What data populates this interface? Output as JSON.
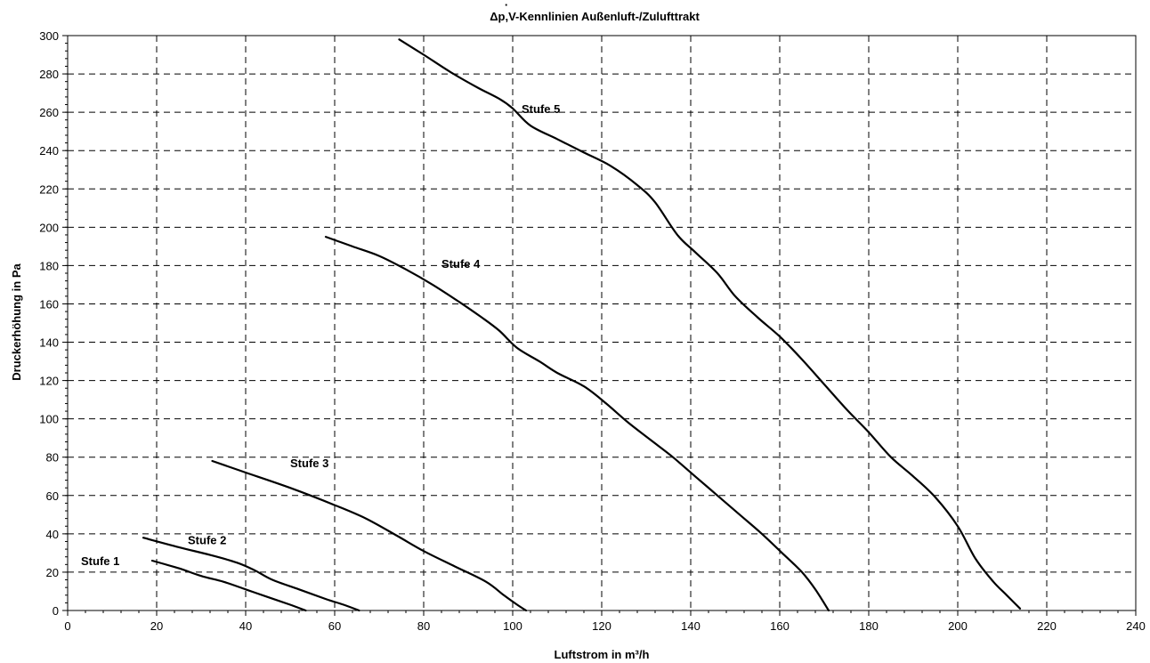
{
  "chart_data": {
    "type": "line",
    "title": "Δp,V-Kennlinien Außenluft-/Zulufttrakt",
    "title_dot": "·",
    "xlabel": "Luftstrom in m³/h",
    "ylabel": "Druckerhöhung in Pa",
    "xlim": [
      0,
      240
    ],
    "ylim": [
      0,
      300
    ],
    "x_ticks": [
      0,
      20,
      40,
      60,
      80,
      100,
      120,
      140,
      160,
      180,
      200,
      220,
      240
    ],
    "y_ticks": [
      0,
      20,
      40,
      60,
      80,
      100,
      120,
      140,
      160,
      180,
      200,
      220,
      240,
      260,
      280,
      300
    ],
    "x_minor_step": 4,
    "y_minor_step": 4,
    "grid": true,
    "legend": "none",
    "series": [
      {
        "name": "Stufe 1",
        "label_at": [
          3,
          26
        ],
        "points": [
          [
            19,
            26
          ],
          [
            25,
            22
          ],
          [
            30,
            18
          ],
          [
            35,
            15
          ],
          [
            40,
            11
          ],
          [
            45,
            7
          ],
          [
            50,
            3
          ],
          [
            53.5,
            0
          ]
        ]
      },
      {
        "name": "Stufe 2",
        "label_at": [
          27,
          37
        ],
        "points": [
          [
            17,
            38
          ],
          [
            25,
            33
          ],
          [
            32,
            29
          ],
          [
            38,
            25
          ],
          [
            42,
            21
          ],
          [
            46,
            16
          ],
          [
            52,
            11
          ],
          [
            58,
            6
          ],
          [
            62,
            3
          ],
          [
            65.5,
            0
          ]
        ]
      },
      {
        "name": "Stufe 3",
        "label_at": [
          50,
          77
        ],
        "points": [
          [
            32.5,
            78
          ],
          [
            40,
            72
          ],
          [
            50,
            64
          ],
          [
            60,
            55
          ],
          [
            67,
            48
          ],
          [
            74,
            39
          ],
          [
            80,
            31
          ],
          [
            87,
            23
          ],
          [
            94,
            15
          ],
          [
            98,
            8
          ],
          [
            101,
            3
          ],
          [
            103,
            0
          ]
        ]
      },
      {
        "name": "Stufe 4",
        "label_at": [
          84,
          181
        ],
        "points": [
          [
            58,
            195
          ],
          [
            64,
            190
          ],
          [
            70,
            185
          ],
          [
            76,
            178
          ],
          [
            82,
            170
          ],
          [
            88,
            161
          ],
          [
            93,
            153
          ],
          [
            97,
            146
          ],
          [
            101,
            137
          ],
          [
            106,
            130
          ],
          [
            110,
            124
          ],
          [
            116,
            117
          ],
          [
            121,
            108
          ],
          [
            126,
            98
          ],
          [
            131,
            89
          ],
          [
            136,
            80
          ],
          [
            141,
            70
          ],
          [
            146,
            60
          ],
          [
            151,
            50
          ],
          [
            156,
            40
          ],
          [
            161,
            29
          ],
          [
            165,
            20
          ],
          [
            168,
            11
          ],
          [
            171,
            0
          ]
        ]
      },
      {
        "name": "Stufe 5",
        "label_at": [
          102,
          262
        ],
        "points": [
          [
            74.5,
            298
          ],
          [
            80,
            290
          ],
          [
            86,
            281
          ],
          [
            92,
            273
          ],
          [
            97,
            267
          ],
          [
            100,
            262
          ],
          [
            104,
            253
          ],
          [
            110,
            246
          ],
          [
            116,
            239
          ],
          [
            122,
            232
          ],
          [
            128,
            222
          ],
          [
            132,
            213
          ],
          [
            137,
            196
          ],
          [
            141,
            187
          ],
          [
            146,
            176
          ],
          [
            150,
            164
          ],
          [
            155,
            153
          ],
          [
            160,
            143
          ],
          [
            165,
            131
          ],
          [
            170,
            118
          ],
          [
            175,
            105
          ],
          [
            180,
            93
          ],
          [
            185,
            80
          ],
          [
            190,
            70
          ],
          [
            195,
            59
          ],
          [
            200,
            44
          ],
          [
            204,
            27
          ],
          [
            208,
            15
          ],
          [
            211,
            8
          ],
          [
            214,
            1
          ]
        ]
      }
    ]
  }
}
